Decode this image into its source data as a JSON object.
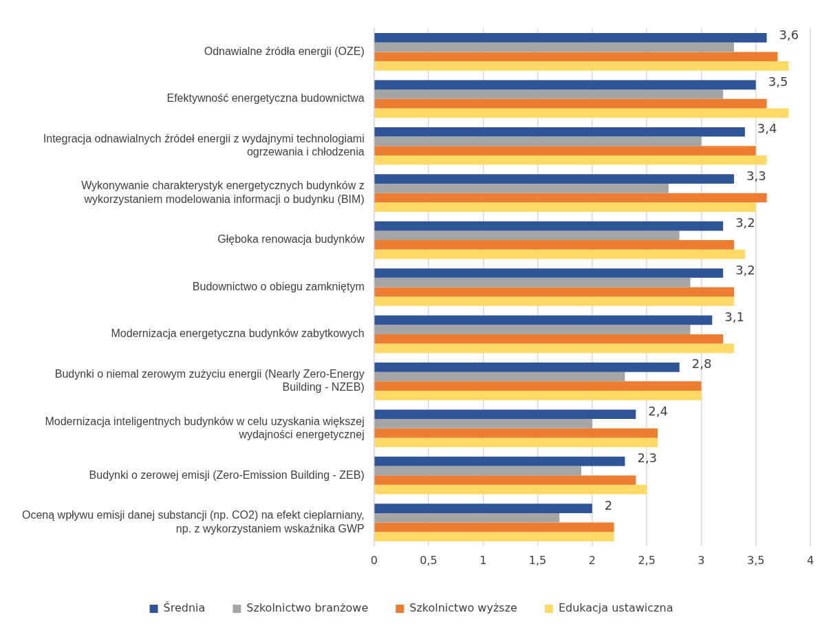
{
  "chart_data": {
    "type": "bar",
    "orientation": "horizontal",
    "categories": [
      "Odnawialne źródła energii (OZE)",
      "Efektywność energetyczna budownictwa",
      "Integracja odnawialnych źródeł energii z wydajnymi technologiami ogrzewania i chłodzenia",
      "Wykonywanie charakterystyk energetycznych budynków z wykorzystaniem modelowania informacji o budynku (BIM)",
      "Głęboka renowacja budynków",
      "Budownictwo o obiegu zamkniętym",
      "Modernizacja energetyczna budynków zabytkowych",
      "Budynki o niemal zerowym zużyciu energii (Nearly Zero-Energy Building - NZEB)",
      "Modernizacja inteligentnych budynków w celu uzyskania większej wydajności energetycznej",
      "Budynki o zerowej emisji (Zero-Emission Building - ZEB)",
      "Oceną wpływu emisji danej substancji (np. CO2) na efekt cieplarniany, np. z wykorzystaniem wskaźnika GWP"
    ],
    "series": [
      {
        "name": "Średnia",
        "color": "#2f5597",
        "values": [
          3.6,
          3.5,
          3.4,
          3.3,
          3.2,
          3.2,
          3.1,
          2.8,
          2.4,
          2.3,
          2.0
        ],
        "value_labels": [
          "3,6",
          "3,5",
          "3,4",
          "3,3",
          "3,2",
          "3,2",
          "3,1",
          "2,8",
          "2,4",
          "2,3",
          "2"
        ]
      },
      {
        "name": "Szkolnictwo branżowe",
        "color": "#a5a5a5",
        "values": [
          3.3,
          3.2,
          3.0,
          2.7,
          2.8,
          2.9,
          2.9,
          2.3,
          2.0,
          1.9,
          1.7
        ]
      },
      {
        "name": "Szkolnictwo wyższe",
        "color": "#ed7d31",
        "values": [
          3.7,
          3.6,
          3.5,
          3.6,
          3.3,
          3.3,
          3.2,
          3.0,
          2.6,
          2.4,
          2.2
        ]
      },
      {
        "name": "Edukacja ustawiczna",
        "color": "#ffd966",
        "values": [
          3.8,
          3.8,
          3.6,
          3.5,
          3.4,
          3.3,
          3.3,
          3.0,
          2.6,
          2.5,
          2.2
        ]
      }
    ],
    "xlim": [
      0,
      4
    ],
    "xticks": [
      0,
      {
        "value": 0.5,
        "label": "0,5"
      },
      1,
      {
        "value": 1.5,
        "label": "1,5"
      },
      2,
      {
        "value": 2.5,
        "label": "2,5"
      },
      3,
      {
        "value": 3.5,
        "label": "3,5"
      },
      4
    ],
    "grid": "x",
    "legend": "bottom"
  }
}
